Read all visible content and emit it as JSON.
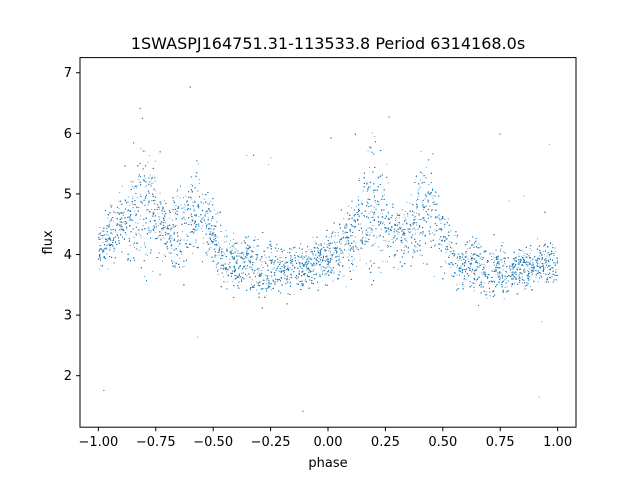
{
  "chart_data": {
    "type": "scatter",
    "title": "1SWASPJ164751.31-113533.8 Period 6314168.0s",
    "xlabel": "phase",
    "ylabel": "flux",
    "xlim": [
      -1.08,
      1.08
    ],
    "ylim": [
      1.15,
      7.25
    ],
    "xticks": [
      {
        "value": -1.0,
        "label": "−1.00"
      },
      {
        "value": -0.75,
        "label": "−0.75"
      },
      {
        "value": -0.5,
        "label": "−0.50"
      },
      {
        "value": -0.25,
        "label": "−0.25"
      },
      {
        "value": 0.0,
        "label": "0.00"
      },
      {
        "value": 0.25,
        "label": "0.25"
      },
      {
        "value": 0.5,
        "label": "0.50"
      },
      {
        "value": 0.75,
        "label": "0.75"
      },
      {
        "value": 1.0,
        "label": "1.00"
      }
    ],
    "yticks": [
      {
        "value": 2,
        "label": "2"
      },
      {
        "value": 3,
        "label": "3"
      },
      {
        "value": 4,
        "label": "4"
      },
      {
        "value": 5,
        "label": "5"
      },
      {
        "value": 6,
        "label": "6"
      },
      {
        "value": 7,
        "label": "7"
      }
    ],
    "marker_color": "#1f77b4",
    "grid": false,
    "series": [
      {
        "phase_flux_profile": {
          "x": [
            -1.0,
            -0.95,
            -0.9,
            -0.85,
            -0.8,
            -0.75,
            -0.7,
            -0.65,
            -0.6,
            -0.55,
            -0.5,
            -0.45,
            -0.4,
            -0.35,
            -0.3,
            -0.25,
            -0.2,
            -0.15,
            -0.1,
            -0.05,
            0.0,
            0.05,
            0.1,
            0.15,
            0.2,
            0.25,
            0.3,
            0.35,
            0.4,
            0.45,
            0.5,
            0.55,
            0.6,
            0.65,
            0.7,
            0.75,
            0.8,
            0.85,
            0.9,
            0.95,
            1.0
          ],
          "y": [
            4.1,
            4.3,
            4.5,
            4.6,
            4.9,
            4.6,
            4.3,
            4.4,
            4.6,
            4.8,
            4.3,
            3.9,
            3.8,
            3.9,
            3.7,
            3.8,
            3.7,
            3.8,
            3.8,
            3.9,
            3.9,
            4.1,
            4.3,
            4.6,
            4.9,
            4.6,
            4.3,
            4.4,
            4.6,
            4.8,
            4.3,
            3.9,
            3.8,
            3.9,
            3.7,
            3.8,
            3.7,
            3.8,
            3.8,
            3.9,
            3.9
          ],
          "scatter": [
            0.25,
            0.3,
            0.4,
            0.55,
            0.75,
            0.5,
            0.35,
            0.5,
            0.55,
            0.5,
            0.35,
            0.3,
            0.3,
            0.3,
            0.3,
            0.3,
            0.25,
            0.25,
            0.25,
            0.25,
            0.25,
            0.3,
            0.4,
            0.55,
            0.75,
            0.5,
            0.35,
            0.5,
            0.55,
            0.5,
            0.35,
            0.3,
            0.3,
            0.3,
            0.3,
            0.3,
            0.25,
            0.25,
            0.25,
            0.25,
            0.25
          ]
        },
        "n_points": 9000
      }
    ]
  }
}
